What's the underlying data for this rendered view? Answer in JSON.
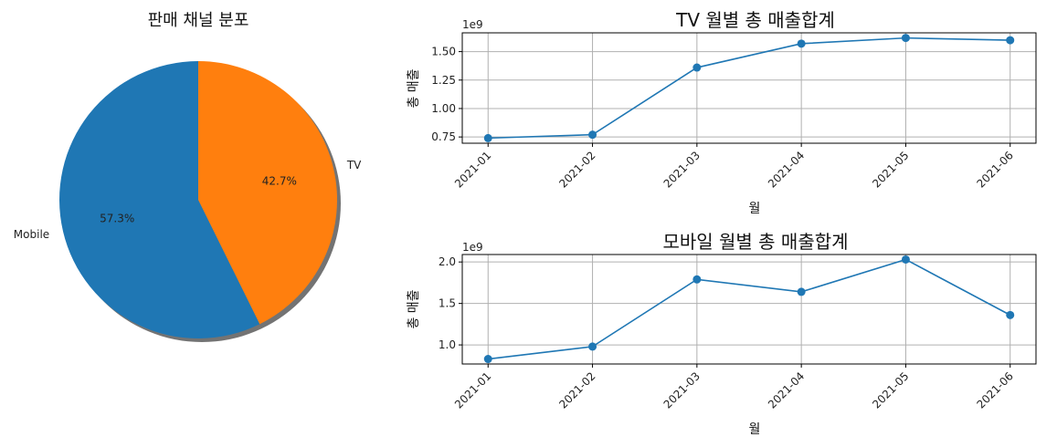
{
  "chart_data": [
    {
      "type": "pie",
      "title": "판매 채널 분포",
      "labels": [
        "Mobile",
        "TV"
      ],
      "values": [
        57.3,
        42.7
      ],
      "percent_labels": [
        "57.3%",
        "42.7%"
      ],
      "colors": [
        "#1f77b4",
        "#ff7f0e"
      ],
      "shadow": true
    },
    {
      "type": "line",
      "title": "TV 월별 총 매출합계",
      "xlabel": "월",
      "ylabel": "총 매출",
      "offset_label": "1e9",
      "categories": [
        "2021-01",
        "2021-02",
        "2021-03",
        "2021-04",
        "2021-05",
        "2021-06"
      ],
      "values": [
        0.74,
        0.77,
        1.36,
        1.57,
        1.62,
        1.6
      ],
      "yticks": [
        0.75,
        1.0,
        1.25,
        1.5
      ],
      "ytick_labels": [
        "0.75",
        "1.00",
        "1.25",
        "1.50"
      ],
      "ylim": [
        0.695,
        1.665
      ],
      "color": "#1f77b4",
      "grid": true
    },
    {
      "type": "line",
      "title": "모바일 월별 총 매출합계",
      "xlabel": "월",
      "ylabel": "총 매출",
      "offset_label": "1e9",
      "categories": [
        "2021-01",
        "2021-02",
        "2021-03",
        "2021-04",
        "2021-05",
        "2021-06"
      ],
      "values": [
        0.83,
        0.98,
        1.79,
        1.64,
        2.03,
        1.36
      ],
      "yticks": [
        1.0,
        1.5,
        2.0
      ],
      "ytick_labels": [
        "1.0",
        "1.5",
        "2.0"
      ],
      "ylim": [
        0.77,
        2.09
      ],
      "color": "#1f77b4",
      "grid": true
    }
  ]
}
